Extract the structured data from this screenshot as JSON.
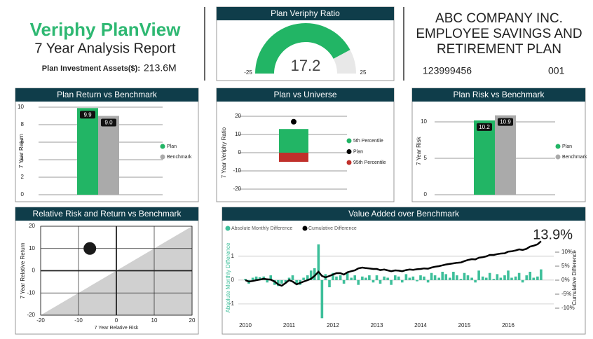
{
  "header": {
    "title": "Veriphy PlanView",
    "subtitle": "7 Year Analysis Report",
    "assets_label": "Plan Investment Assets($):",
    "assets_value": "213.6M"
  },
  "company": {
    "name_lines": [
      "ABC COMPANY INC.",
      "EMPLOYEE SAVINGS AND",
      "RETIREMENT  PLAN"
    ],
    "account": "123999456",
    "plan_number": "001"
  },
  "chart_data": [
    {
      "type": "gauge",
      "title": "Plan Veriphy Ratio",
      "value": 17.2,
      "min": -25,
      "max": 25,
      "color": "#22b565",
      "track_color": "#e8e8e8"
    },
    {
      "type": "bar",
      "title": "Plan Return vs Benchmark",
      "ylabel": "7 Year Return",
      "series": [
        {
          "name": "Plan",
          "color": "#22b565",
          "values": [
            9.9
          ],
          "value_labels": [
            "9.9"
          ]
        },
        {
          "name": "Benchmark",
          "color": "#aaaaaa",
          "values": [
            9
          ],
          "value_labels": [
            "9.0"
          ]
        }
      ],
      "ylim": [
        0,
        10
      ],
      "yticks": [
        0,
        2,
        4,
        6,
        8,
        10
      ],
      "grid": true
    },
    {
      "type": "universe",
      "title": "Plan vs Universe",
      "ylabel": "7 Year Veriphy Ratio",
      "series": [
        {
          "name": "5th Percentile",
          "color": "#22b565",
          "values": [
            13
          ],
          "mark": "bar"
        },
        {
          "name": "Plan",
          "color": "#000000",
          "values": [
            17
          ],
          "mark": "dot"
        },
        {
          "name": "95th Percentile",
          "color": "#c0302b",
          "values": [
            -5
          ],
          "mark": "bar"
        }
      ],
      "ylim": [
        -23,
        23
      ],
      "yticks": [
        -20,
        -10,
        0,
        10,
        20
      ],
      "grid": true
    },
    {
      "type": "bar",
      "title": "Plan Risk vs Benchmark",
      "ylabel": "7 Year Risk",
      "series": [
        {
          "name": "Plan",
          "color": "#22b565",
          "values": [
            10.2
          ],
          "value_labels": [
            "10.2"
          ]
        },
        {
          "name": "Benchmark",
          "color": "#aaaaaa",
          "values": [
            10.9
          ],
          "value_labels": [
            "10.9"
          ]
        }
      ],
      "ylim": [
        0,
        12
      ],
      "yticks": [
        0,
        5,
        10
      ],
      "grid": true
    },
    {
      "type": "scatter",
      "title": "Relative Risk and Return vs Benchmark",
      "xlabel": "7 Year Relative Risk",
      "ylabel": "7 Year Relative Return",
      "x": [
        -7
      ],
      "values": [
        10
      ],
      "color": "#1a1a1a",
      "shade_color": "#d0d0d0",
      "xlim": [
        -20,
        20
      ],
      "ylim": [
        -20,
        20
      ],
      "xticks": [
        -20,
        -10,
        0,
        10,
        20
      ],
      "yticks": [
        -20,
        -10,
        0,
        10,
        20
      ],
      "grid": true
    },
    {
      "type": "combo",
      "title": "Value Added over Benchmark",
      "ylabel": "Absolute Monthly Difference",
      "y2label": "Cumulative Difference",
      "annotation": "13.9%",
      "x": [
        2010,
        2010.08,
        2010.17,
        2010.25,
        2010.33,
        2010.42,
        2010.5,
        2010.58,
        2010.67,
        2010.75,
        2010.83,
        2010.92,
        2011,
        2011.08,
        2011.17,
        2011.25,
        2011.33,
        2011.42,
        2011.5,
        2011.58,
        2011.67,
        2011.75,
        2011.83,
        2011.92,
        2012,
        2012.08,
        2012.17,
        2012.25,
        2012.33,
        2012.42,
        2012.5,
        2012.58,
        2012.67,
        2012.75,
        2012.83,
        2012.92,
        2013,
        2013.08,
        2013.17,
        2013.25,
        2013.33,
        2013.42,
        2013.5,
        2013.58,
        2013.67,
        2013.75,
        2013.83,
        2013.92,
        2014,
        2014.08,
        2014.17,
        2014.25,
        2014.33,
        2014.42,
        2014.5,
        2014.58,
        2014.67,
        2014.75,
        2014.83,
        2014.92,
        2015,
        2015.08,
        2015.17,
        2015.25,
        2015.33,
        2015.42,
        2015.5,
        2015.58,
        2015.67,
        2015.75,
        2015.83,
        2015.92,
        2016,
        2016.08,
        2016.17,
        2016.25,
        2016.33,
        2016.42,
        2016.5,
        2016.58,
        2016.67,
        2016.75
      ],
      "series": [
        {
          "name": "Absolute Monthly Difference",
          "color": "#3dbf9a",
          "values": [
            0.05,
            -0.15,
            0.1,
            0.15,
            0.12,
            0.15,
            -0.1,
            0.2,
            -0.2,
            -0.25,
            -0.15,
            -0.1,
            0.1,
            0.2,
            -0.15,
            -0.2,
            0.1,
            0.2,
            0.4,
            0.5,
            1.5,
            -1.6,
            0.25,
            -0.3,
            0.3,
            0.15,
            0.2,
            -0.15,
            0.3,
            0.1,
            0.2,
            -0.2,
            0.15,
            0.1,
            0.2,
            -0.1,
            0.2,
            -0.15,
            0.15,
            0.1,
            -0.2,
            0.2,
            0.15,
            -0.1,
            0.25,
            0.1,
            0.15,
            -0.05,
            0.2,
            0.15,
            -0.1,
            0.3,
            0.2,
            0.1,
            0.35,
            0.25,
            0.1,
            0.35,
            0.2,
            0.05,
            0.3,
            0.2,
            0.1,
            -0.1,
            0.4,
            0.15,
            0.1,
            0.3,
            0.05,
            0.25,
            0.1,
            0.2,
            0.4,
            0.1,
            0.15,
            0.3,
            -0.1,
            0.2,
            0.35,
            0.1,
            0.15,
            0.45
          ]
        },
        {
          "name": "Cumulative Difference",
          "color": "#000000",
          "axis": "y2",
          "values": [
            0,
            -0.5,
            -0.3,
            0,
            0.2,
            0.5,
            0.3,
            0.2,
            -0.5,
            -1.5,
            -2,
            -1,
            0,
            -0.5,
            -1.5,
            -1,
            -0.5,
            0,
            0.5,
            1.5,
            3,
            1.5,
            1,
            1.5,
            2,
            2.5,
            2.5,
            2,
            2.8,
            3.2,
            3.5,
            4.2,
            4.5,
            4.3,
            4.2,
            4,
            4,
            3.6,
            3.8,
            3.5,
            3.2,
            3.5,
            3.4,
            3.2,
            3.6,
            3.8,
            3.7,
            3.9,
            4,
            4.2,
            4.1,
            4.5,
            4.8,
            5,
            5.3,
            5.6,
            5.8,
            6,
            6.2,
            6.3,
            6.8,
            7.2,
            7.5,
            7.4,
            8,
            8.2,
            8.5,
            9,
            9,
            9.3,
            9.5,
            9.6,
            10.2,
            10.3,
            10.6,
            11,
            10.8,
            11.2,
            12,
            12.3,
            12.8,
            13.9
          ]
        }
      ],
      "xlim": [
        2009.84,
        2017.04
      ],
      "xticks": [
        2010,
        2011,
        2012,
        2013,
        2014,
        2015,
        2016
      ],
      "ylim": [
        -1.62,
        1.82
      ],
      "yticks": [
        -1,
        0,
        1
      ],
      "y2lim": [
        -13.75,
        15.5
      ],
      "y2ticks": [
        {
          "value": -10,
          "label": "-10%"
        },
        {
          "value": -5,
          "label": "-5%"
        },
        {
          "value": 0,
          "label": "0%"
        },
        {
          "value": 5,
          "label": "5%"
        },
        {
          "value": 10,
          "label": "10%"
        }
      ],
      "grid": true
    }
  ]
}
